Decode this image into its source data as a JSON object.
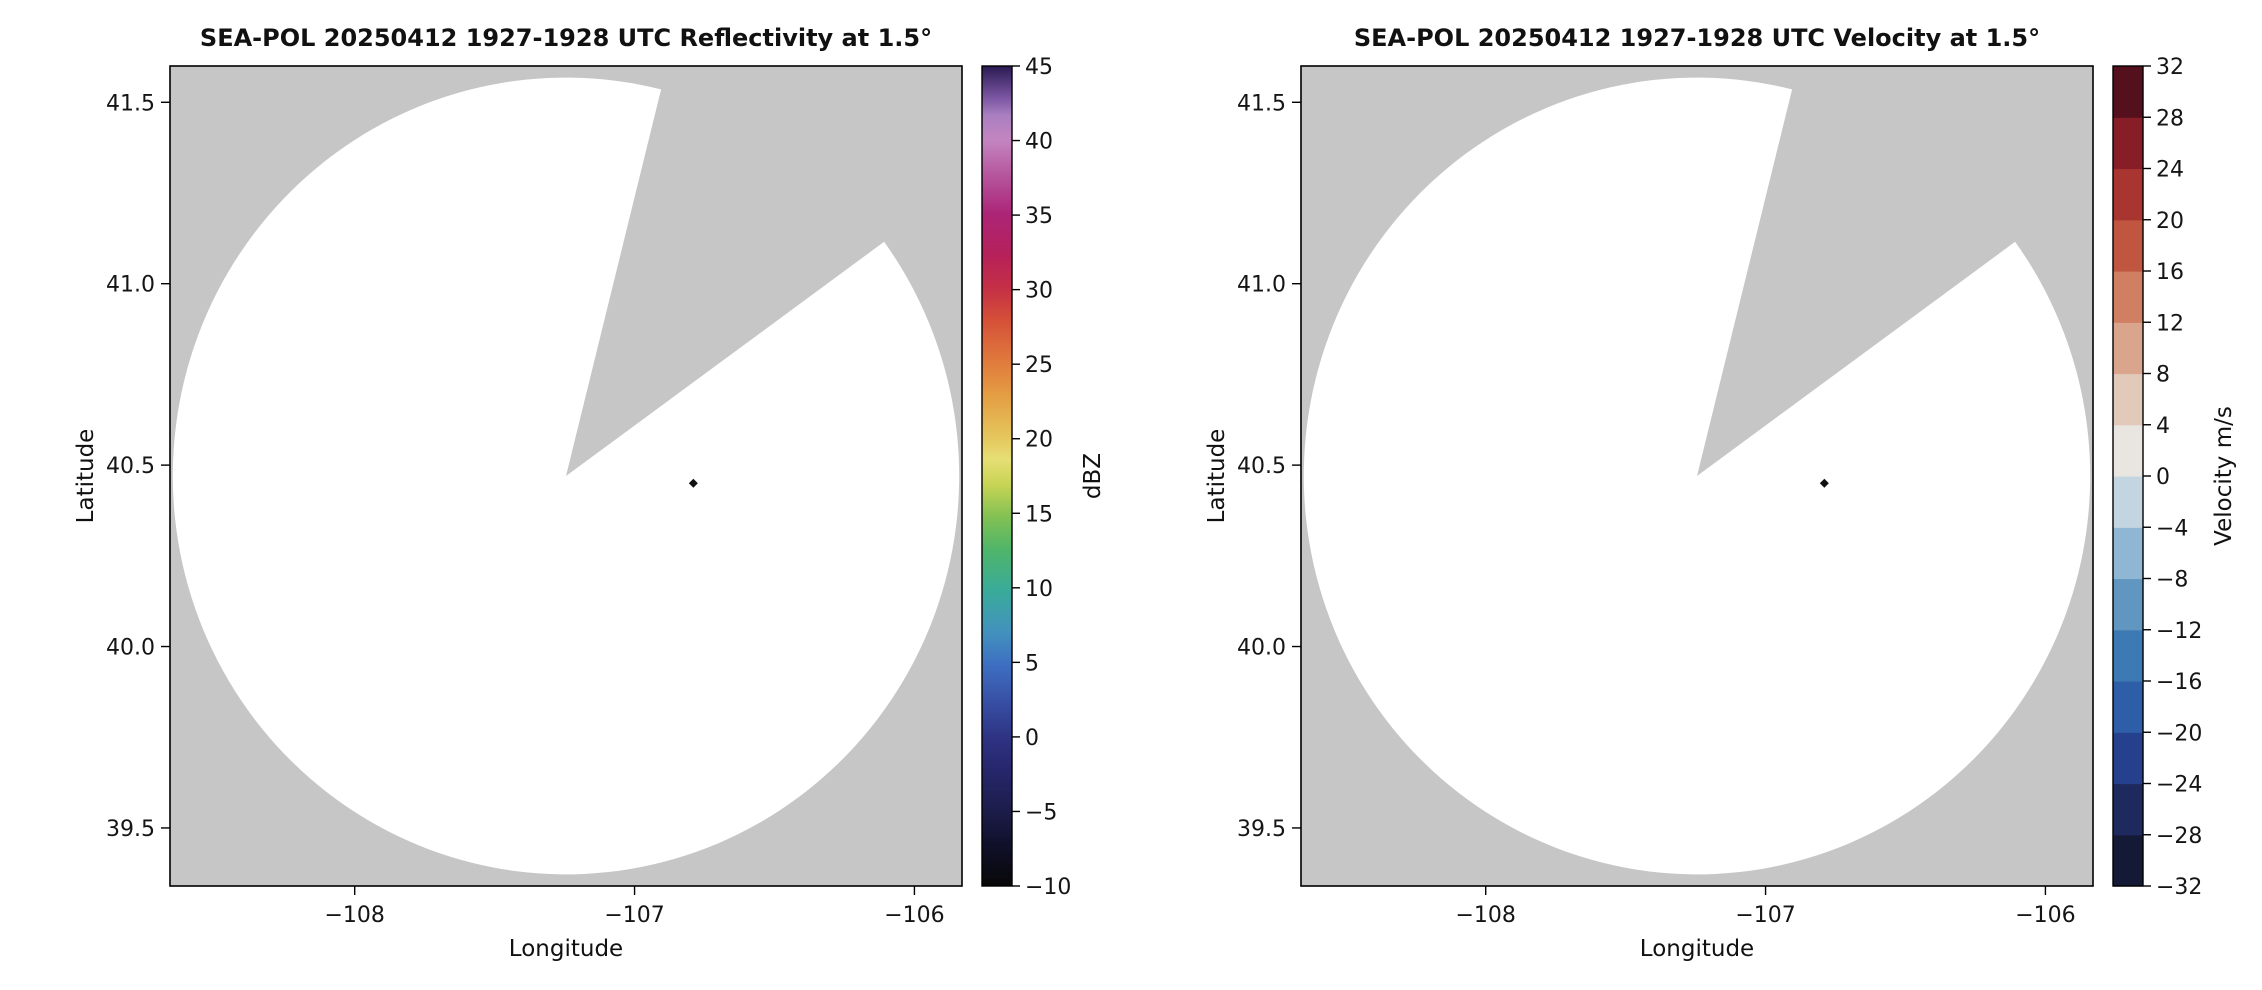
{
  "figure": {
    "background": "#ffffff",
    "description": "Two-panel SEA-POL radar PPI figure: reflectivity (left) and velocity (right), both blank (no echoes) with blocked sector and site marker"
  },
  "chart_data": [
    {
      "type": "radar_ppi",
      "title": "SEA-POL 20250412 1927-1928 UTC Reflectivity at 1.5°",
      "xlabel": "Longitude",
      "ylabel": "Latitude",
      "xlim": [
        -108.66,
        -105.83
      ],
      "ylim": [
        39.34,
        41.6
      ],
      "xticks": {
        "values": [
          -108,
          -107,
          -106
        ],
        "labels": [
          "−108",
          "−107",
          "−106"
        ]
      },
      "yticks": {
        "values": [
          39.5,
          40.0,
          40.5,
          41.0,
          41.5
        ],
        "labels": [
          "39.5",
          "40.0",
          "40.5",
          "41.0",
          "41.5"
        ]
      },
      "grid": "off",
      "radar_coverage": {
        "center_lon": -107.245,
        "center_lat": 40.47,
        "radius_lon_deg": 1.405,
        "radius_lat_deg": 1.098,
        "blocked_sector_az_deg": [
          14,
          54
        ]
      },
      "echoes": "none visible (coverage area blank)",
      "site_marker": {
        "lon": -106.79,
        "lat": 40.45,
        "shape": "diamond"
      },
      "colors": {
        "outside_range": "#c6c6c6",
        "in_range": "#ffffff",
        "marker": "#111111",
        "frame": "#000000"
      },
      "colorbar": {
        "label": "dBZ",
        "vmin": -10,
        "vmax": 45,
        "style": "continuous",
        "tick_values": [
          45,
          40,
          35,
          30,
          25,
          20,
          15,
          10,
          5,
          0,
          -5,
          -10
        ],
        "tick_labels": [
          "45",
          "40",
          "35",
          "30",
          "25",
          "20",
          "15",
          "10",
          "5",
          "0",
          "−5",
          "−10"
        ],
        "stops": [
          [
            0.0,
            "#080808"
          ],
          [
            0.05,
            "#10102a"
          ],
          [
            0.09,
            "#1c1c49"
          ],
          [
            0.14,
            "#26266b"
          ],
          [
            0.18,
            "#2e3282"
          ],
          [
            0.23,
            "#3853a8"
          ],
          [
            0.27,
            "#3e6fc2"
          ],
          [
            0.31,
            "#4292bd"
          ],
          [
            0.36,
            "#3aab9a"
          ],
          [
            0.41,
            "#4fb56a"
          ],
          [
            0.45,
            "#82c153"
          ],
          [
            0.49,
            "#c8d455"
          ],
          [
            0.52,
            "#e6df74"
          ],
          [
            0.55,
            "#e5c45b"
          ],
          [
            0.6,
            "#e49c43"
          ],
          [
            0.64,
            "#e07a3d"
          ],
          [
            0.69,
            "#d55038"
          ],
          [
            0.73,
            "#c42f46"
          ],
          [
            0.77,
            "#b5215a"
          ],
          [
            0.82,
            "#ac2577"
          ],
          [
            0.86,
            "#b44f97"
          ],
          [
            0.91,
            "#c385c0"
          ],
          [
            0.94,
            "#a97fc0"
          ],
          [
            0.96,
            "#7e58a5"
          ],
          [
            1.0,
            "#2a1a52"
          ]
        ]
      }
    },
    {
      "type": "radar_ppi",
      "title": "SEA-POL 20250412 1927-1928 UTC Velocity at 1.5°",
      "xlabel": "Longitude",
      "ylabel": "Latitude",
      "xlim": [
        -108.66,
        -105.83
      ],
      "ylim": [
        39.34,
        41.6
      ],
      "xticks": {
        "values": [
          -108,
          -107,
          -106
        ],
        "labels": [
          "−108",
          "−107",
          "−106"
        ]
      },
      "yticks": {
        "values": [
          39.5,
          40.0,
          40.5,
          41.0,
          41.5
        ],
        "labels": [
          "39.5",
          "40.0",
          "40.5",
          "41.0",
          "41.5"
        ]
      },
      "grid": "off",
      "radar_coverage": {
        "center_lon": -107.245,
        "center_lat": 40.47,
        "radius_lon_deg": 1.405,
        "radius_lat_deg": 1.098,
        "blocked_sector_az_deg": [
          14,
          54
        ]
      },
      "echoes": "none visible (coverage area blank)",
      "site_marker": {
        "lon": -106.79,
        "lat": 40.45,
        "shape": "diamond"
      },
      "colors": {
        "outside_range": "#c6c6c6",
        "in_range": "#ffffff",
        "marker": "#111111",
        "frame": "#000000"
      },
      "colorbar": {
        "label": "Velocity m/s",
        "vmin": -32,
        "vmax": 32,
        "style": "discrete",
        "tick_values": [
          32,
          28,
          24,
          20,
          16,
          12,
          8,
          4,
          0,
          -4,
          -8,
          -12,
          -16,
          -20,
          -24,
          -28,
          -32
        ],
        "tick_labels": [
          "32",
          "28",
          "24",
          "20",
          "16",
          "12",
          "8",
          "4",
          "0",
          "−4",
          "−8",
          "−12",
          "−16",
          "−20",
          "−24",
          "−28",
          "−32"
        ],
        "bands": [
          [
            -32,
            -28,
            "#141936"
          ],
          [
            -28,
            -24,
            "#1e2a5e"
          ],
          [
            -24,
            -20,
            "#25408c"
          ],
          [
            -20,
            -16,
            "#2e5ea7"
          ],
          [
            -16,
            -12,
            "#3d7ab3"
          ],
          [
            -12,
            -8,
            "#6096c0"
          ],
          [
            -8,
            -4,
            "#8fb6d2"
          ],
          [
            -4,
            0,
            "#c3d5e1"
          ],
          [
            0,
            4,
            "#e9e6e1"
          ],
          [
            4,
            8,
            "#e2cabb"
          ],
          [
            8,
            12,
            "#d9a68d"
          ],
          [
            12,
            16,
            "#d07f62"
          ],
          [
            16,
            20,
            "#c05640"
          ],
          [
            20,
            24,
            "#a93530"
          ],
          [
            24,
            28,
            "#871e27"
          ],
          [
            28,
            32,
            "#55101e"
          ]
        ]
      }
    }
  ]
}
